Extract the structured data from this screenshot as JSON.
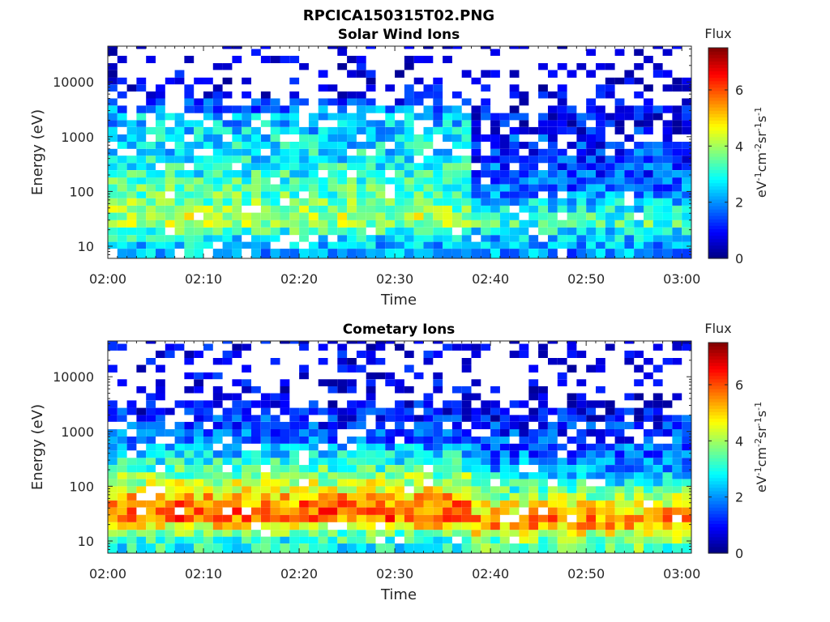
{
  "figure_title": "RPCICA150315T02.PNG",
  "chart_data": [
    {
      "type": "heatmap",
      "title": "Solar Wind Ions",
      "xlabel": "Time",
      "ylabel": "Energy (eV)",
      "x_range": [
        "02:00",
        "03:01"
      ],
      "x_ticks": [
        "02:00",
        "02:10",
        "02:20",
        "02:30",
        "02:40",
        "02:50",
        "03:00"
      ],
      "y_scale": "log",
      "y_range": [
        6,
        45000
      ],
      "y_ticks": [
        {
          "value": 10,
          "label": "10"
        },
        {
          "value": 100,
          "label": "100"
        },
        {
          "value": 1000,
          "label": "1000"
        },
        {
          "value": 10000,
          "label": "10000"
        }
      ],
      "colorbar": {
        "title": "Flux",
        "unit_label": "eV-1cm-2sr-1s-1",
        "range": [
          0,
          7.5
        ],
        "ticks": [
          0,
          2,
          4,
          6
        ],
        "colormap": "jet"
      },
      "time_columns": [
        "02:00",
        "02:01",
        "02:02",
        "02:03",
        "02:04",
        "02:05",
        "02:06",
        "02:07",
        "02:08",
        "02:09",
        "02:10",
        "02:11",
        "02:12",
        "02:13",
        "02:14",
        "02:15",
        "02:16",
        "02:17",
        "02:18",
        "02:19",
        "02:20",
        "02:21",
        "02:22",
        "02:23",
        "02:24",
        "02:25",
        "02:26",
        "02:27",
        "02:28",
        "02:29",
        "02:30",
        "02:31",
        "02:32",
        "02:33",
        "02:34",
        "02:35",
        "02:36",
        "02:37",
        "02:38",
        "02:39",
        "02:40",
        "02:41",
        "02:42",
        "02:43",
        "02:44",
        "02:45",
        "02:46",
        "02:47",
        "02:48",
        "02:49",
        "02:50",
        "02:51",
        "02:52",
        "02:53",
        "02:54",
        "02:55",
        "02:56",
        "02:57",
        "02:58",
        "02:59",
        "03:00"
      ],
      "energy_bins_eV": [
        6,
        9,
        12,
        16,
        22,
        30,
        41,
        55,
        75,
        100,
        135,
        180,
        245,
        330,
        450,
        600,
        810,
        1100,
        1500,
        2000,
        2700,
        3700,
        5000,
        6700,
        9000,
        12000,
        16500,
        22000,
        30000,
        40000
      ],
      "flux_profile": [
        {
          "energy_eV": 8,
          "flux_before_0238": 2.3,
          "flux_after_0238": 2.0
        },
        {
          "energy_eV": 15,
          "flux_before_0238": 3.0,
          "flux_after_0238": 2.6
        },
        {
          "energy_eV": 25,
          "flux_before_0238": 4.3,
          "flux_after_0238": 3.5
        },
        {
          "energy_eV": 40,
          "flux_before_0238": 3.8,
          "flux_after_0238": 2.8
        },
        {
          "energy_eV": 100,
          "flux_before_0238": 3.3,
          "flux_after_0238": 1.7
        },
        {
          "energy_eV": 300,
          "flux_before_0238": 2.8,
          "flux_after_0238": 1.4
        },
        {
          "energy_eV": 800,
          "flux_before_0238": 2.6,
          "flux_after_0238": 1.2
        },
        {
          "energy_eV": 2000,
          "flux_before_0238": 2.3,
          "flux_after_0238": 0.9
        },
        {
          "energy_eV": 5000,
          "flux_before_0238": 0.8,
          "flux_after_0238": 0.5
        },
        {
          "energy_eV": 20000,
          "flux_before_0238": 0.3,
          "flux_after_0238": 0.2
        }
      ]
    },
    {
      "type": "heatmap",
      "title": "Cometary Ions",
      "xlabel": "Time",
      "ylabel": "Energy (eV)",
      "x_range": [
        "02:00",
        "03:01"
      ],
      "x_ticks": [
        "02:00",
        "02:10",
        "02:20",
        "02:30",
        "02:40",
        "02:50",
        "03:00"
      ],
      "y_scale": "log",
      "y_range": [
        6,
        45000
      ],
      "y_ticks": [
        {
          "value": 10,
          "label": "10"
        },
        {
          "value": 100,
          "label": "100"
        },
        {
          "value": 1000,
          "label": "1000"
        },
        {
          "value": 10000,
          "label": "10000"
        }
      ],
      "colorbar": {
        "title": "Flux",
        "unit_label": "eV-1cm-2sr-1s-1",
        "range": [
          0,
          7.5
        ],
        "ticks": [
          0,
          2,
          4,
          6
        ],
        "colormap": "jet"
      },
      "time_columns": [
        "02:00",
        "02:01",
        "02:02",
        "02:03",
        "02:04",
        "02:05",
        "02:06",
        "02:07",
        "02:08",
        "02:09",
        "02:10",
        "02:11",
        "02:12",
        "02:13",
        "02:14",
        "02:15",
        "02:16",
        "02:17",
        "02:18",
        "02:19",
        "02:20",
        "02:21",
        "02:22",
        "02:23",
        "02:24",
        "02:25",
        "02:26",
        "02:27",
        "02:28",
        "02:29",
        "02:30",
        "02:31",
        "02:32",
        "02:33",
        "02:34",
        "02:35",
        "02:36",
        "02:37",
        "02:38",
        "02:39",
        "02:40",
        "02:41",
        "02:42",
        "02:43",
        "02:44",
        "02:45",
        "02:46",
        "02:47",
        "02:48",
        "02:49",
        "02:50",
        "02:51",
        "02:52",
        "02:53",
        "02:54",
        "02:55",
        "02:56",
        "02:57",
        "02:58",
        "02:59",
        "03:00"
      ],
      "energy_bins_eV": [
        6,
        9,
        12,
        16,
        22,
        30,
        41,
        55,
        75,
        100,
        135,
        180,
        245,
        330,
        450,
        600,
        810,
        1100,
        1500,
        2000,
        2700,
        3700,
        5000,
        6700,
        9000,
        12000,
        16500,
        22000,
        30000,
        40000
      ],
      "flux_profile": [
        {
          "energy_eV": 8,
          "flux_before_0238": 2.9,
          "flux_after_0238": 3.5
        },
        {
          "energy_eV": 12,
          "flux_before_0238": 3.6,
          "flux_after_0238": 4.4
        },
        {
          "energy_eV": 18,
          "flux_before_0238": 5.2,
          "flux_after_0238": 5.6
        },
        {
          "energy_eV": 25,
          "flux_before_0238": 6.1,
          "flux_after_0238": 5.4
        },
        {
          "energy_eV": 40,
          "flux_before_0238": 5.6,
          "flux_after_0238": 4.5
        },
        {
          "energy_eV": 70,
          "flux_before_0238": 4.8,
          "flux_after_0238": 3.5
        },
        {
          "energy_eV": 120,
          "flux_before_0238": 3.9,
          "flux_after_0238": 2.6
        },
        {
          "energy_eV": 250,
          "flux_before_0238": 2.9,
          "flux_after_0238": 1.9
        },
        {
          "energy_eV": 600,
          "flux_before_0238": 1.8,
          "flux_after_0238": 1.4
        },
        {
          "energy_eV": 1500,
          "flux_before_0238": 1.2,
          "flux_after_0238": 1.0
        },
        {
          "energy_eV": 3500,
          "flux_before_0238": 0.6,
          "flux_after_0238": 0.3
        }
      ]
    }
  ]
}
